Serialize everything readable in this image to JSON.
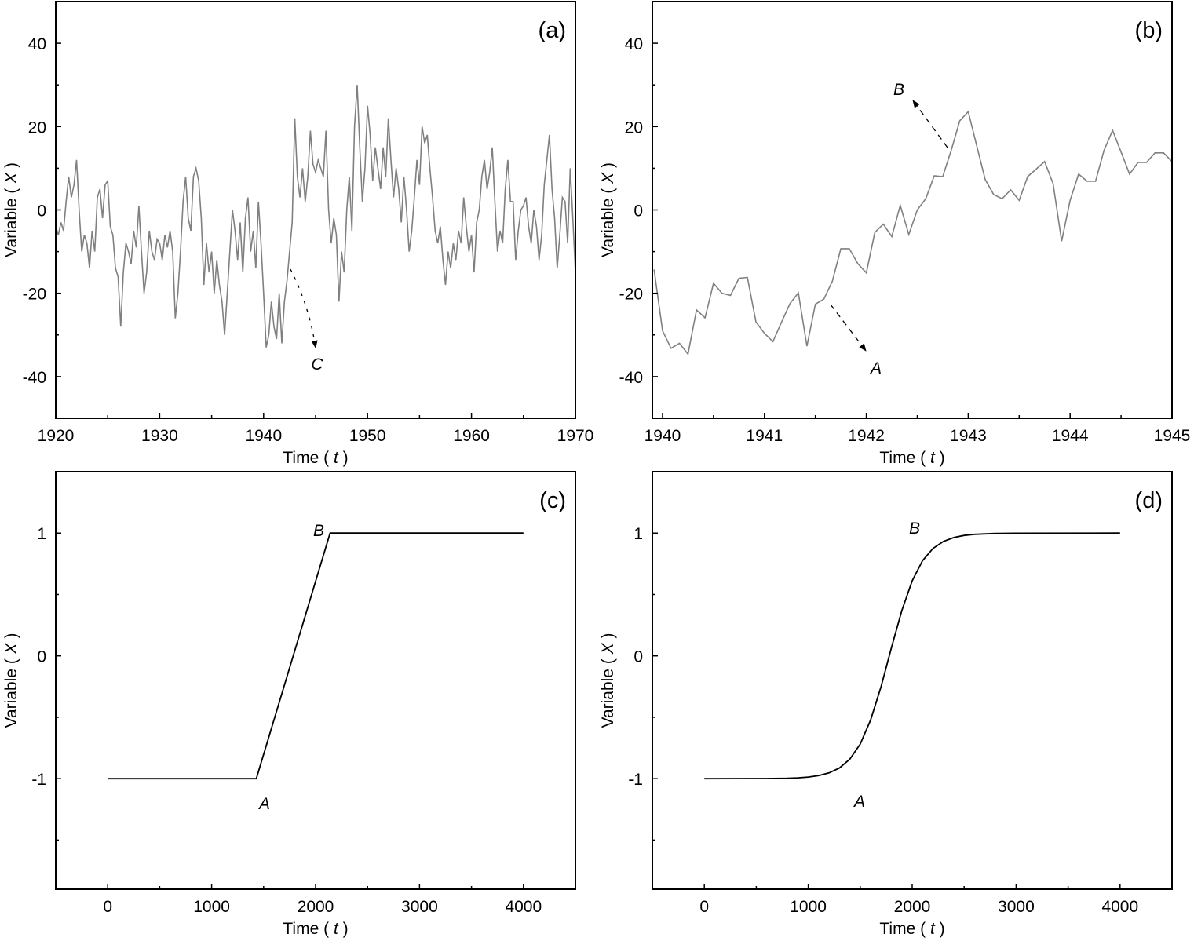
{
  "chart_data": [
    {
      "panel_label": "(a)",
      "type": "line",
      "xlabel": "Time ( t )",
      "xlabel_var": "t",
      "ylabel": "Variable ( X )",
      "ylabel_var": "X",
      "xlim": [
        1920,
        1970
      ],
      "ylim": [
        -50,
        50
      ],
      "xticks": [
        1920,
        1930,
        1940,
        1950,
        1960,
        1970
      ],
      "xtick_labels": [
        "1920",
        "1930",
        "1940",
        "1950",
        "1960",
        "1970"
      ],
      "xminor_step": 5,
      "yticks": [
        -40,
        -20,
        0,
        20,
        40
      ],
      "ytick_labels": [
        "-40",
        "-20",
        "0",
        "20",
        "40"
      ],
      "yminor_step": 10,
      "line_color": "#808080",
      "x_start": 1920,
      "x_step": 0.25,
      "values": [
        -4,
        -6,
        -3,
        -5,
        2,
        8,
        3,
        6,
        12,
        0,
        -10,
        -6,
        -8,
        -14,
        -5,
        -10,
        3,
        5,
        -2,
        6,
        7,
        -4,
        -6,
        -14,
        -16,
        -28,
        -15,
        -8,
        -10,
        -13,
        -5,
        -9,
        1,
        -10,
        -20,
        -15,
        -5,
        -10,
        -12,
        -7,
        -8,
        -12,
        -6,
        -9,
        -5,
        -10,
        -26,
        -20,
        -10,
        2,
        8,
        -2,
        -5,
        8,
        10,
        7,
        -2,
        -18,
        -8,
        -15,
        -10,
        -20,
        -12,
        -18,
        -22,
        -30,
        -20,
        -10,
        0,
        -5,
        -12,
        -3,
        -15,
        -2,
        3,
        -10,
        -5,
        -14,
        2,
        -8,
        -20,
        -33,
        -30,
        -22,
        -28,
        -31,
        -20,
        -32,
        -22,
        -17,
        -10,
        -3,
        22,
        8,
        3,
        10,
        2,
        8,
        19,
        11,
        9,
        12,
        10,
        8,
        19,
        0,
        -8,
        -2,
        -6,
        -22,
        -10,
        -15,
        0,
        8,
        -5,
        20,
        30,
        15,
        2,
        10,
        25,
        18,
        7,
        15,
        10,
        5,
        15,
        8,
        22,
        12,
        3,
        10,
        5,
        -3,
        8,
        0,
        -10,
        -5,
        3,
        12,
        6,
        20,
        16,
        18,
        10,
        3,
        -5,
        -8,
        -4,
        -12,
        -18,
        -10,
        -14,
        -8,
        -12,
        -5,
        -8,
        3,
        -4,
        -10,
        -6,
        -15,
        -3,
        0,
        8,
        12,
        5,
        9,
        15,
        2,
        -10,
        -5,
        -8,
        5,
        12,
        2,
        2,
        -12,
        -5,
        0,
        1,
        3,
        -4,
        -8,
        0,
        -4,
        -12,
        -6,
        6,
        12,
        18,
        5,
        -2,
        -14,
        -6,
        3,
        2,
        -8,
        10,
        -2,
        -15
      ],
      "annotations": [
        {
          "label": "C"
        }
      ]
    },
    {
      "panel_label": "(b)",
      "type": "line",
      "xlabel": "Time ( t )",
      "xlabel_var": "t",
      "ylabel": "Variable ( X )",
      "ylabel_var": "X",
      "xlim": [
        1939.9,
        1945
      ],
      "ylim": [
        -50,
        50
      ],
      "xticks": [
        1940,
        1941,
        1942,
        1943,
        1944,
        1945
      ],
      "xtick_labels": [
        "1940",
        "1941",
        "1942",
        "1943",
        "1944",
        "1945"
      ],
      "xminor_step": 0.5,
      "yticks": [
        -40,
        -20,
        0,
        20,
        40
      ],
      "ytick_labels": [
        "-40",
        "-20",
        "0",
        "20",
        "40"
      ],
      "yminor_step": 10,
      "line_color": "#808080",
      "x_start": 1939.9167,
      "x_step": 0.08333,
      "values": [
        -14.3,
        -29,
        -33.2,
        -32,
        -34.6,
        -24,
        -25.9,
        -17.6,
        -20,
        -20.5,
        -16.4,
        -16.2,
        -26.9,
        -29.6,
        -31.6,
        -27,
        -22.5,
        -19.9,
        -32.7,
        -22.6,
        -21.4,
        -17.1,
        -9.3,
        -9.3,
        -12.9,
        -15.1,
        -5.4,
        -3.4,
        -6.4,
        1.1,
        -5.9,
        0,
        2.7,
        8.2,
        8,
        14.3,
        21.4,
        23.6,
        15.4,
        7.3,
        3.7,
        2.7,
        4.8,
        2.3,
        8,
        9.8,
        11.6,
        6.3,
        -7.5,
        2.3,
        8.6,
        6.9,
        6.9,
        14.3,
        19.1,
        13.9,
        8.6,
        11.4,
        11.4,
        13.7,
        13.7,
        11.6
      ],
      "annotations": [
        {
          "label": "A"
        },
        {
          "label": "B"
        }
      ]
    },
    {
      "panel_label": "(c)",
      "type": "line",
      "xlabel": "Time ( t )",
      "xlabel_var": "t",
      "ylabel": "Variable ( X )",
      "ylabel_var": "X",
      "xlim": [
        -500,
        4500
      ],
      "ylim": [
        -1.9,
        1.5
      ],
      "xticks": [
        0,
        1000,
        2000,
        3000,
        4000
      ],
      "xtick_labels": [
        "0",
        "1000",
        "2000",
        "3000",
        "4000"
      ],
      "xminor_step": 500,
      "yticks": [
        -1,
        0,
        1
      ],
      "ytick_labels": [
        "-1",
        "0",
        "1"
      ],
      "yminor_step": 0.5,
      "line_color": "#000000",
      "x": [
        0,
        1430,
        2140,
        4000
      ],
      "values": [
        -1,
        -1,
        1,
        1
      ],
      "annotations": [
        {
          "label": "A"
        },
        {
          "label": "B"
        }
      ]
    },
    {
      "panel_label": "(d)",
      "type": "line",
      "xlabel": "Time ( t )",
      "xlabel_var": "t",
      "ylabel": "Variable ( X )",
      "ylabel_var": "X",
      "xlim": [
        -500,
        4500
      ],
      "ylim": [
        -1.9,
        1.5
      ],
      "xticks": [
        0,
        1000,
        2000,
        3000,
        4000
      ],
      "xtick_labels": [
        "0",
        "1000",
        "2000",
        "3000",
        "4000"
      ],
      "xminor_step": 500,
      "yticks": [
        -1,
        0,
        1
      ],
      "ytick_labels": [
        "-1",
        "0",
        "1"
      ],
      "yminor_step": 0.5,
      "line_color": "#000000",
      "x": [
        0,
        600,
        800,
        900,
        1000,
        1100,
        1200,
        1300,
        1400,
        1500,
        1600,
        1700,
        1800,
        1900,
        2000,
        2100,
        2200,
        2300,
        2400,
        2500,
        2600,
        2800,
        3000,
        4000
      ],
      "values": [
        -1,
        -0.999,
        -0.996,
        -0.993,
        -0.987,
        -0.975,
        -0.953,
        -0.913,
        -0.841,
        -0.718,
        -0.523,
        -0.252,
        0.065,
        0.369,
        0.611,
        0.775,
        0.875,
        0.932,
        0.964,
        0.981,
        0.99,
        0.997,
        0.999,
        1
      ],
      "annotations": [
        {
          "label": "A"
        },
        {
          "label": "B"
        }
      ]
    }
  ]
}
